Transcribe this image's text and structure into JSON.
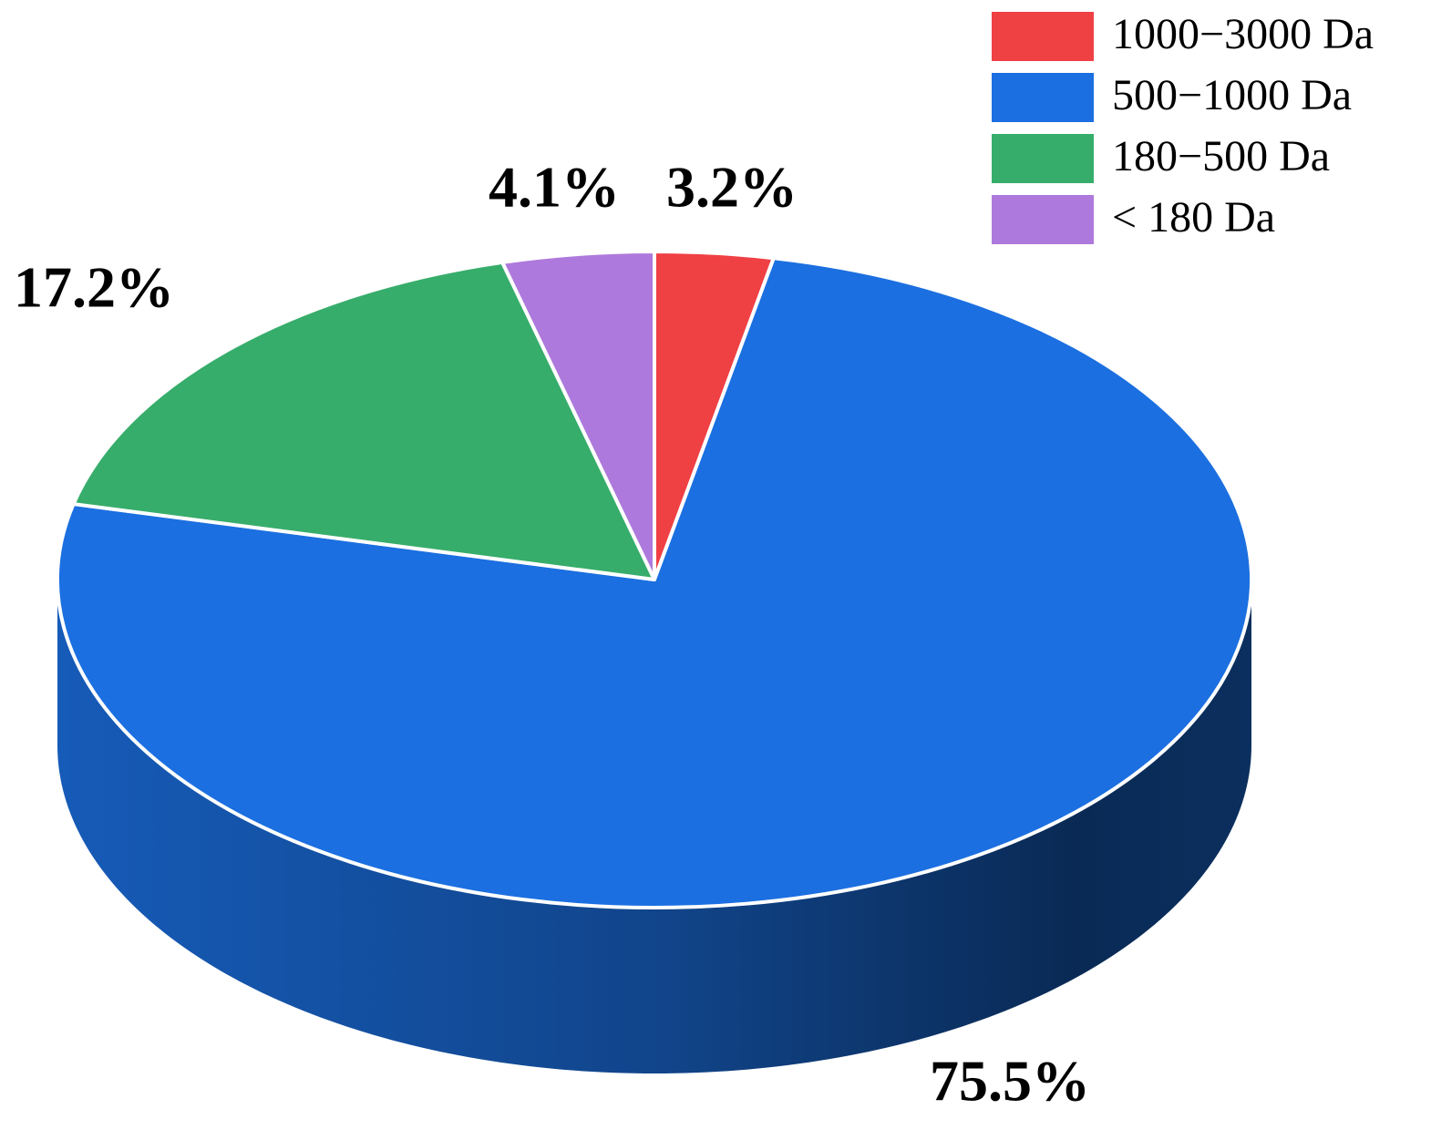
{
  "chart_data": {
    "type": "pie",
    "categories": [
      "1000−3000 Da",
      "500−1000 Da",
      "180−500 Da",
      "< 180 Da"
    ],
    "values": [
      3.2,
      75.5,
      17.2,
      4.1
    ],
    "value_labels": [
      "3.2%",
      "75.5%",
      "17.2%",
      "4.1%"
    ],
    "colors": [
      "#ef4044",
      "#1b6fe0",
      "#37ad6b",
      "#ae79dc"
    ],
    "legend": "top-right"
  }
}
